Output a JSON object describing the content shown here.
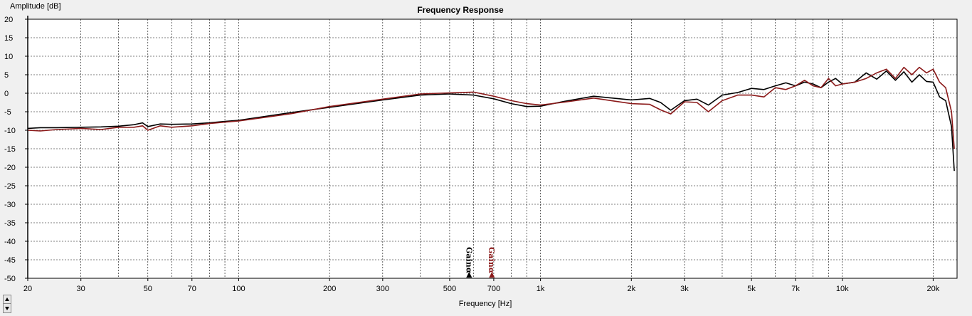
{
  "chart_data": {
    "type": "line",
    "title": "Frequency Response",
    "xlabel": "Frequency [Hz]",
    "ylabel": "Amplitude [dB]",
    "xscale": "log",
    "xlim": [
      20,
      24000
    ],
    "ylim": [
      -50,
      20
    ],
    "grid": true,
    "x_ticks": [
      20,
      30,
      50,
      70,
      100,
      200,
      300,
      500,
      700,
      1000,
      2000,
      3000,
      5000,
      7000,
      10000,
      20000
    ],
    "x_tick_labels": [
      "20",
      "30",
      "50",
      "70",
      "100",
      "200",
      "300",
      "500",
      "700",
      "1k",
      "2k",
      "3k",
      "5k",
      "7k",
      "10k",
      "20k"
    ],
    "y_ticks": [
      20,
      15,
      10,
      5,
      0,
      -5,
      -10,
      -15,
      -20,
      -25,
      -30,
      -35,
      -40,
      -45,
      -50
    ],
    "y_tick_labels": [
      "20",
      "15",
      "10",
      "5",
      "0",
      "-5",
      "-10",
      "-15",
      "-20",
      "-25",
      "-30",
      "-35",
      "-40",
      "-45",
      "-50"
    ],
    "series": [
      {
        "color": "#000000",
        "x": [
          20,
          22,
          25,
          30,
          35,
          40,
          45,
          48,
          50,
          55,
          60,
          70,
          80,
          90,
          100,
          150,
          200,
          300,
          400,
          500,
          600,
          700,
          800,
          900,
          1000,
          1200,
          1500,
          2000,
          2300,
          2500,
          2700,
          3000,
          3300,
          3600,
          4000,
          4500,
          5000,
          5500,
          6000,
          6500,
          7000,
          7500,
          8000,
          8500,
          9000,
          9500,
          10000,
          11000,
          12000,
          13000,
          14000,
          15000,
          16000,
          17000,
          18000,
          19000,
          20000,
          21000,
          22000,
          23000,
          23500
        ],
        "y": [
          -9.5,
          -9.3,
          -9.3,
          -9.2,
          -9.1,
          -8.9,
          -8.5,
          -8.0,
          -9.0,
          -8.3,
          -8.4,
          -8.3,
          -8.0,
          -7.6,
          -7.3,
          -5.2,
          -3.8,
          -1.8,
          -0.5,
          -0.2,
          -0.5,
          -1.5,
          -2.8,
          -3.6,
          -3.5,
          -2.2,
          -0.8,
          -1.8,
          -1.4,
          -2.5,
          -4.6,
          -2.0,
          -1.6,
          -3.2,
          -0.5,
          0.2,
          1.3,
          1.0,
          2.0,
          2.8,
          2.0,
          3.0,
          2.5,
          1.5,
          3.0,
          4.0,
          2.5,
          3.0,
          5.5,
          3.8,
          6.0,
          3.5,
          5.8,
          3.0,
          5.0,
          3.2,
          3.0,
          -1.0,
          -2.0,
          -9.0,
          -21.0
        ]
      },
      {
        "color": "#8b1a1a",
        "x": [
          20,
          22,
          25,
          30,
          35,
          40,
          45,
          48,
          50,
          55,
          60,
          70,
          80,
          90,
          100,
          150,
          200,
          300,
          400,
          500,
          600,
          700,
          800,
          900,
          1000,
          1200,
          1500,
          2000,
          2300,
          2500,
          2700,
          3000,
          3300,
          3600,
          4000,
          4500,
          5000,
          5500,
          6000,
          6500,
          7000,
          7500,
          8000,
          8500,
          9000,
          9500,
          10000,
          11000,
          12000,
          13000,
          14000,
          15000,
          16000,
          17000,
          18000,
          19000,
          20000,
          21000,
          22000,
          23000,
          23500
        ],
        "y": [
          -10.0,
          -10.2,
          -9.8,
          -9.5,
          -9.8,
          -9.2,
          -9.2,
          -8.8,
          -10.0,
          -8.8,
          -9.2,
          -8.8,
          -8.2,
          -7.8,
          -7.5,
          -5.5,
          -3.6,
          -1.6,
          -0.2,
          0.1,
          0.3,
          -0.8,
          -2.0,
          -2.8,
          -3.2,
          -2.4,
          -1.3,
          -2.8,
          -3.0,
          -4.5,
          -5.6,
          -2.3,
          -2.5,
          -5.0,
          -2.0,
          -0.5,
          -0.5,
          -1.0,
          1.5,
          1.0,
          2.0,
          3.5,
          2.0,
          1.5,
          4.0,
          2.0,
          2.5,
          3.0,
          4.0,
          5.5,
          6.5,
          4.0,
          7.0,
          5.0,
          7.0,
          5.5,
          6.5,
          3.0,
          1.5,
          -5.0,
          -15.0
        ]
      }
    ],
    "markers": [
      {
        "label": "Gainα",
        "x": 580,
        "color": "#000000"
      },
      {
        "label": "Gainα",
        "x": 690,
        "color": "#8b1a1a"
      }
    ]
  }
}
